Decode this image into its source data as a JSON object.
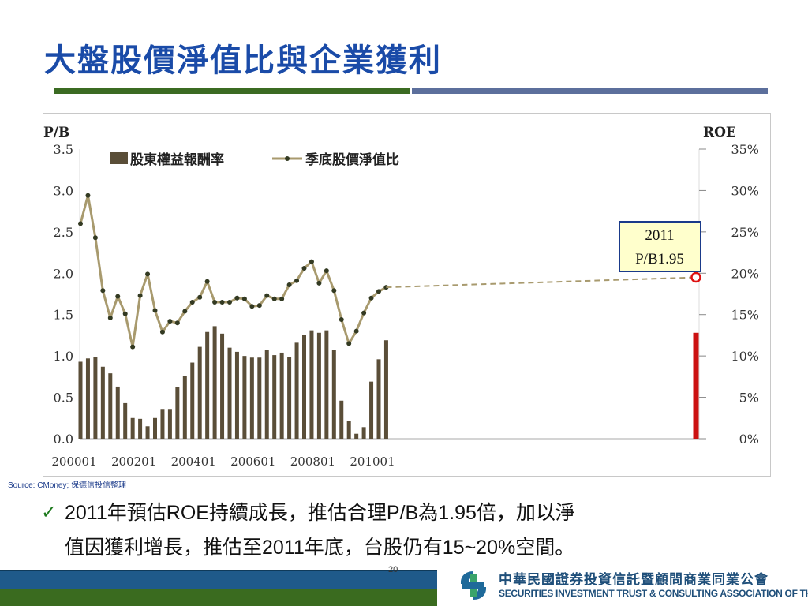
{
  "page": {
    "title": "大盤股價淨值比與企業獲利",
    "source": "Source: CMoney; 保德信投信整理",
    "bullet": {
      "line1": "2011年預估ROE持續成長，推估合理P/B為1.95倍，加以淨",
      "line2": "值因獲利增長，推估至2011年底，台股仍有15~20%空間。"
    },
    "page_number": "20",
    "org_name_zh": "中華民國證券投資信託暨顧問商業同業公會",
    "org_name_en": "SECURITIES INVESTMENT TRUST & CONSULTING ASSOCIATION OF THE R.O.C."
  },
  "chart_data": {
    "type": "bar+line",
    "left_axis_title": "P/B",
    "right_axis_title": "ROE",
    "left_ticks": [
      "3.5",
      "3.0",
      "2.5",
      "2.0",
      "1.5",
      "1.0",
      "0.5",
      "0.0"
    ],
    "right_ticks": [
      "35%",
      "30%",
      "25%",
      "20%",
      "15%",
      "10%",
      "5%",
      "0%"
    ],
    "left_range": [
      0,
      3.5
    ],
    "right_range": [
      0,
      35
    ],
    "x_tick_labels": [
      "200001",
      "200201",
      "200401",
      "200601",
      "200801",
      "201001"
    ],
    "x_tick_index": [
      0,
      8,
      16,
      24,
      32,
      40
    ],
    "legend": {
      "bar_label": "股東權益報酬率",
      "line_label": "季底股價淨值比",
      "placement": "top-left"
    },
    "annotation": {
      "line1": "2011",
      "line2": "P/B1.95"
    },
    "series": [
      {
        "name": "股東權益報酬率",
        "kind": "bar",
        "axis": "right",
        "values": [
          9.3,
          9.7,
          9.9,
          8.7,
          7.9,
          6.3,
          4.3,
          2.5,
          2.4,
          1.5,
          2.5,
          3.6,
          3.6,
          6.2,
          7.6,
          9.2,
          11.1,
          12.9,
          13.6,
          12.7,
          11.0,
          10.5,
          10.0,
          9.8,
          9.8,
          10.7,
          10.1,
          10.4,
          9.9,
          11.6,
          12.5,
          13.1,
          12.8,
          13.1,
          10.7,
          4.6,
          2.1,
          0.6,
          1.4,
          6.9,
          9.6,
          11.9
        ],
        "color": "#5a4e38"
      },
      {
        "name": "2011",
        "kind": "bar",
        "axis": "right",
        "values": [
          12.8
        ],
        "color": "#cc1111"
      },
      {
        "name": "季底股價淨值比",
        "kind": "line",
        "axis": "left",
        "values": [
          2.6,
          2.94,
          2.43,
          1.79,
          1.46,
          1.72,
          1.51,
          1.11,
          1.73,
          1.99,
          1.55,
          1.29,
          1.42,
          1.4,
          1.54,
          1.65,
          1.71,
          1.9,
          1.65,
          1.65,
          1.65,
          1.7,
          1.69,
          1.6,
          1.61,
          1.73,
          1.69,
          1.69,
          1.86,
          1.91,
          2.06,
          2.14,
          1.88,
          2.03,
          1.79,
          1.44,
          1.15,
          1.3,
          1.52,
          1.7,
          1.78,
          1.83
        ],
        "color": "#a89a6e"
      }
    ],
    "forecast": {
      "value": 1.95,
      "axis": "left"
    },
    "grid": false
  }
}
